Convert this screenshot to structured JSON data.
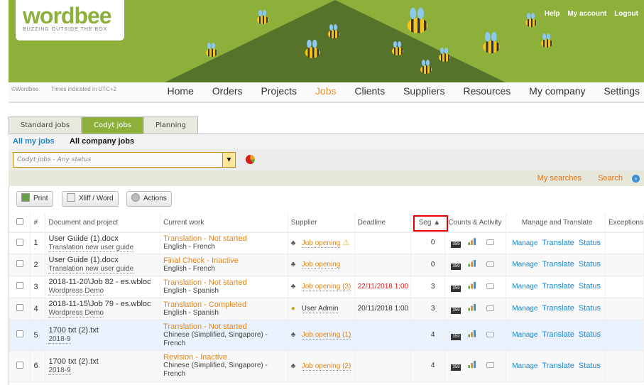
{
  "header": {
    "logo_text": "wordbee",
    "logo_tagline": "BUZZING OUTSIDE THE BOX",
    "top_links": [
      "Help",
      "My account",
      "Logout"
    ],
    "copyright": "©Wordbee",
    "timezone": "Times indicated in UTC+2"
  },
  "nav": {
    "items": [
      "Home",
      "Orders",
      "Projects",
      "Jobs",
      "Clients",
      "Suppliers",
      "Resources",
      "My company",
      "Settings"
    ],
    "active": "Jobs",
    "accent": "#e8912c"
  },
  "tabs": [
    "Standard jobs",
    "Codyt jobs",
    "Planning"
  ],
  "active_tab": "Codyt jobs",
  "scope": {
    "mine": "All my jobs",
    "company": "All company jobs"
  },
  "filter": {
    "value": "Codyt jobs - Any status"
  },
  "searches": {
    "my_searches": "My searches",
    "search": "Search"
  },
  "toolbar": {
    "print": "Print",
    "xliff": "Xliff / Word",
    "actions": "Actions"
  },
  "table": {
    "headers": [
      "#",
      "Document and project",
      "Current work",
      "Supplier",
      "Deadline",
      "Seg ▲",
      "Counts & Activity",
      "Manage and Translate",
      "Exceptions"
    ],
    "links": {
      "manage": "Manage",
      "translate": "Translate",
      "status": "Status"
    },
    "count_icon": "359",
    "rows": [
      {
        "n": "1",
        "doc": "User Guide (1).docx",
        "project": "Translation new user guide",
        "work": "Translation - Not started",
        "lang": "English - French",
        "supplier": "Job opening",
        "warn": true,
        "deadline": "",
        "seg": "0"
      },
      {
        "n": "2",
        "doc": "User Guide (1).docx",
        "project": "Translation new user guide",
        "work": "Final Check - Inactive",
        "lang": "English - French",
        "supplier": "Job opening",
        "deadline": "",
        "seg": "0"
      },
      {
        "n": "3",
        "doc": "2018-11-20\\Job 82 - es.wbloc",
        "project": "Wordpress Demo",
        "work": "Translation - Not started",
        "lang": "English - Spanish",
        "supplier": "Job opening (3)",
        "deadline": "22/11/2018 1:00",
        "seg": "3"
      },
      {
        "n": "4",
        "doc": "2018-11-15\\Job 79 - es.wbloc",
        "project": "Wordpress Demo",
        "work": "Translation - Completed",
        "lang": "English - Spanish",
        "supplier": "User Admin",
        "deadline": "20/11/2018 1:00",
        "seg": "3"
      },
      {
        "n": "5",
        "doc": "1700 txt (2).txt",
        "project": "2018-9",
        "work": "Translation - Not started",
        "lang": "Chinese (Simplified, Singapore) - French",
        "supplier": "Job opening (1)",
        "deadline": "",
        "seg": "4"
      },
      {
        "n": "6",
        "doc": "1700 txt (2).txt",
        "project": "2018-9",
        "work": "Revision - Inactive",
        "lang": "Chinese (Simplified, Singapore) - French",
        "supplier": "Job opening (2)",
        "deadline": "",
        "seg": "4"
      }
    ]
  }
}
